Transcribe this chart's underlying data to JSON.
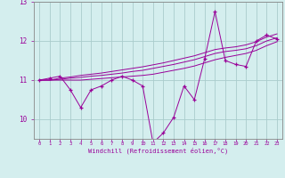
{
  "xlabel": "Windchill (Refroidissement éolien,°C)",
  "x": [
    0,
    1,
    2,
    3,
    4,
    5,
    6,
    7,
    8,
    9,
    10,
    11,
    12,
    13,
    14,
    15,
    16,
    17,
    18,
    19,
    20,
    21,
    22,
    23
  ],
  "y_main": [
    11.0,
    11.05,
    11.1,
    10.75,
    10.3,
    10.75,
    10.85,
    11.0,
    11.1,
    11.0,
    10.85,
    9.4,
    9.65,
    10.05,
    10.85,
    10.5,
    11.55,
    12.75,
    11.5,
    11.4,
    11.35,
    12.0,
    12.15,
    12.05
  ],
  "y_smooth1": [
    11.0,
    11.0,
    11.0,
    11.0,
    11.0,
    11.02,
    11.04,
    11.06,
    11.08,
    11.1,
    11.12,
    11.15,
    11.2,
    11.25,
    11.3,
    11.36,
    11.44,
    11.52,
    11.58,
    11.63,
    11.68,
    11.76,
    11.88,
    11.98
  ],
  "y_smooth2": [
    11.0,
    11.0,
    11.02,
    11.05,
    11.07,
    11.1,
    11.12,
    11.15,
    11.18,
    11.22,
    11.25,
    11.3,
    11.35,
    11.4,
    11.46,
    11.52,
    11.6,
    11.68,
    11.73,
    11.76,
    11.8,
    11.88,
    12.0,
    12.08
  ],
  "y_smooth3": [
    11.0,
    11.0,
    11.05,
    11.08,
    11.12,
    11.15,
    11.18,
    11.22,
    11.26,
    11.3,
    11.34,
    11.39,
    11.44,
    11.5,
    11.56,
    11.62,
    11.7,
    11.78,
    11.82,
    11.85,
    11.9,
    11.98,
    12.1,
    12.18
  ],
  "line_color": "#990099",
  "bg_color": "#d4eeee",
  "grid_color": "#aacccc",
  "ylim_min": 9.5,
  "ylim_max": 13.0,
  "xlim_min": 0,
  "xlim_max": 23
}
